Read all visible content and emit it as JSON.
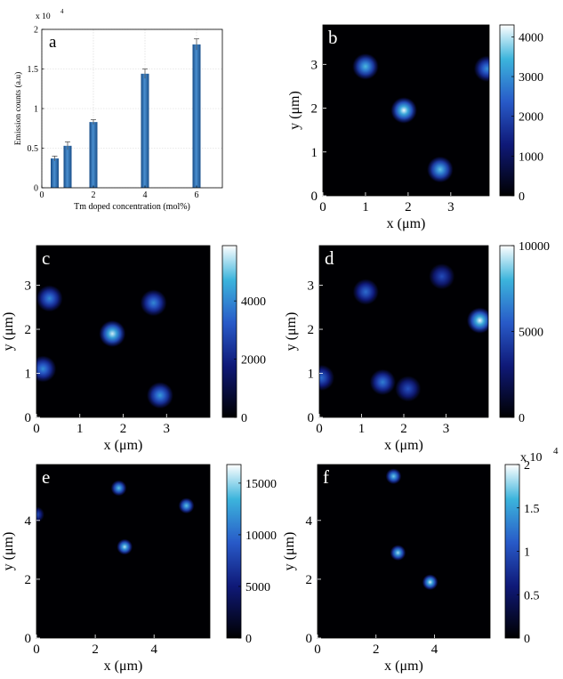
{
  "chart_data": [
    {
      "id": "a",
      "type": "bar",
      "panel_label": "a",
      "title": "",
      "xlabel": "Tm doped concentration (mol%)",
      "ylabel": "Emission counts (a.u)",
      "y_exponent_label": "x 10",
      "y_exponent_power": "4",
      "xlim": [
        0,
        7
      ],
      "ylim": [
        0,
        2
      ],
      "x_ticks": [
        0,
        2,
        4,
        6
      ],
      "y_ticks": [
        0,
        0.5,
        1,
        1.5,
        2
      ],
      "grid": true,
      "x": [
        0.5,
        1,
        2,
        4,
        6
      ],
      "values": [
        0.37,
        0.53,
        0.83,
        1.44,
        1.81
      ],
      "errors": [
        0.03,
        0.05,
        0.03,
        0.06,
        0.07
      ],
      "bar_color": "#2f6fb0"
    },
    {
      "id": "b",
      "type": "heatmap",
      "panel_label": "b",
      "xlabel": "x (μm)",
      "ylabel": "y (μm)",
      "xlim": [
        0,
        3.9
      ],
      "ylim": [
        0,
        3.9
      ],
      "x_ticks": [
        0,
        1,
        2,
        3
      ],
      "y_ticks": [
        0,
        1,
        2,
        3
      ],
      "colorbar_ticks": [
        0,
        1000,
        2000,
        3000,
        4000
      ],
      "colorbar_exponent": "",
      "clim": [
        0,
        4300
      ],
      "spots": [
        {
          "x": 1.0,
          "y": 2.95,
          "intensity": 3500
        },
        {
          "x": 1.9,
          "y": 1.95,
          "intensity": 4200
        },
        {
          "x": 2.75,
          "y": 0.6,
          "intensity": 3600
        },
        {
          "x": 3.85,
          "y": 2.9,
          "intensity": 3000
        }
      ]
    },
    {
      "id": "c",
      "type": "heatmap",
      "panel_label": "c",
      "xlabel": "x (μm)",
      "ylabel": "y (μm)",
      "xlim": [
        0,
        4.0
      ],
      "ylim": [
        0,
        3.9
      ],
      "x_ticks": [
        0,
        1,
        2,
        3
      ],
      "y_ticks": [
        0,
        1,
        2,
        3
      ],
      "colorbar_ticks": [
        0,
        2000,
        4000
      ],
      "colorbar_exponent": "",
      "clim": [
        0,
        5900
      ],
      "spots": [
        {
          "x": 0.3,
          "y": 2.7,
          "intensity": 4000
        },
        {
          "x": 2.7,
          "y": 2.6,
          "intensity": 4000
        },
        {
          "x": 1.75,
          "y": 1.9,
          "intensity": 5600
        },
        {
          "x": 0.15,
          "y": 1.1,
          "intensity": 4100
        },
        {
          "x": 2.85,
          "y": 0.5,
          "intensity": 4300
        }
      ]
    },
    {
      "id": "d",
      "type": "heatmap",
      "panel_label": "d",
      "xlabel": "x (μm)",
      "ylabel": "y (μm)",
      "xlim": [
        0,
        4.0
      ],
      "ylim": [
        0,
        3.9
      ],
      "x_ticks": [
        0,
        1,
        2,
        3
      ],
      "y_ticks": [
        0,
        1,
        2,
        3
      ],
      "colorbar_ticks": [
        0,
        5000,
        10000
      ],
      "colorbar_exponent": "",
      "clim": [
        0,
        10000
      ],
      "spots": [
        {
          "x": 1.1,
          "y": 2.85,
          "intensity": 6000
        },
        {
          "x": 2.9,
          "y": 3.2,
          "intensity": 5000
        },
        {
          "x": 3.8,
          "y": 2.2,
          "intensity": 9800
        },
        {
          "x": 0.05,
          "y": 0.9,
          "intensity": 6000
        },
        {
          "x": 1.5,
          "y": 0.8,
          "intensity": 6500
        },
        {
          "x": 2.1,
          "y": 0.65,
          "intensity": 5200
        }
      ]
    },
    {
      "id": "e",
      "type": "heatmap",
      "panel_label": "e",
      "xlabel": "x (μm)",
      "ylabel": "y (μm)",
      "xlim": [
        0,
        5.9
      ],
      "ylim": [
        0,
        5.9
      ],
      "x_ticks": [
        0,
        2,
        4
      ],
      "y_ticks": [
        0,
        2,
        4
      ],
      "colorbar_ticks": [
        0,
        5000,
        10000,
        15000
      ],
      "colorbar_exponent": "",
      "clim": [
        0,
        16800
      ],
      "spots": [
        {
          "x": 2.8,
          "y": 5.1,
          "intensity": 14000
        },
        {
          "x": 5.1,
          "y": 4.5,
          "intensity": 14000
        },
        {
          "x": 3.0,
          "y": 3.1,
          "intensity": 15500
        },
        {
          "x": 0.0,
          "y": 4.2,
          "intensity": 9000
        }
      ]
    },
    {
      "id": "f",
      "type": "heatmap",
      "panel_label": "f",
      "xlabel": "x (μm)",
      "ylabel": "y (μm)",
      "xlim": [
        0,
        5.9
      ],
      "ylim": [
        0,
        5.9
      ],
      "x_ticks": [
        0,
        2,
        4
      ],
      "y_ticks": [
        0,
        2,
        4
      ],
      "colorbar_ticks": [
        0,
        0.5,
        1,
        1.5,
        2
      ],
      "colorbar_exponent": "x 10",
      "colorbar_exponent_power": "4",
      "clim": [
        0,
        2
      ],
      "spots": [
        {
          "x": 2.6,
          "y": 5.5,
          "intensity": 1.7
        },
        {
          "x": 2.75,
          "y": 2.9,
          "intensity": 1.8
        },
        {
          "x": 3.85,
          "y": 1.9,
          "intensity": 1.9
        }
      ]
    }
  ]
}
